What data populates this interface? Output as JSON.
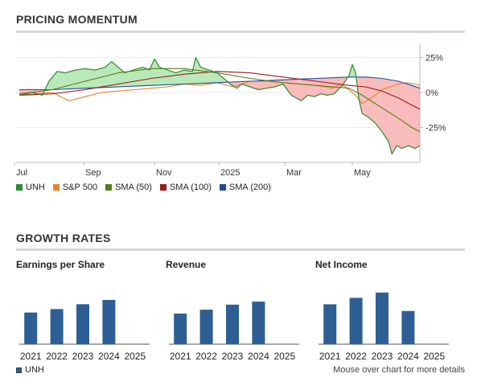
{
  "header": {
    "momentum_title": "PRICING MOMENTUM",
    "growth_title": "GROWTH RATES"
  },
  "colors": {
    "unh": "#2e8b2e",
    "sp500": "#e8832a",
    "sma50": "#5a7d1a",
    "sma100": "#9c1b1b",
    "sma200": "#23479a",
    "bar": "#2d5f94",
    "positive_fill": "#9fe09f",
    "negative_fill": "#f5a3a3"
  },
  "chart_data": [
    {
      "type": "line",
      "x_ticks": [
        "Jul",
        "Sep",
        "Nov",
        "2025",
        "Mar",
        "May"
      ],
      "y_ticks": [
        "25%",
        "0%",
        "-25%"
      ],
      "ylim": [
        -50,
        35
      ],
      "grid": true,
      "legend_position": "bottom",
      "series": [
        {
          "name": "UNH",
          "color": "#2e8b2e",
          "points": [
            [
              0,
              -2
            ],
            [
              8,
              -1
            ],
            [
              16,
              0
            ],
            [
              28,
              -2
            ],
            [
              36,
              8
            ],
            [
              46,
              15
            ],
            [
              56,
              14
            ],
            [
              68,
              16
            ],
            [
              80,
              17
            ],
            [
              92,
              16
            ],
            [
              104,
              18
            ],
            [
              112,
              22
            ],
            [
              120,
              18
            ],
            [
              128,
              14
            ],
            [
              138,
              16
            ],
            [
              150,
              18
            ],
            [
              158,
              16
            ],
            [
              164,
              24
            ],
            [
              170,
              18
            ],
            [
              180,
              16
            ],
            [
              190,
              14
            ],
            [
              200,
              16
            ],
            [
              210,
              15
            ],
            [
              214,
              25
            ],
            [
              220,
              18
            ],
            [
              230,
              16
            ],
            [
              240,
              14
            ],
            [
              248,
              10
            ],
            [
              256,
              6
            ],
            [
              264,
              3
            ],
            [
              270,
              6
            ],
            [
              280,
              4
            ],
            [
              290,
              2
            ],
            [
              300,
              3
            ],
            [
              310,
              4
            ],
            [
              320,
              6
            ],
            [
              330,
              -2
            ],
            [
              336,
              -4
            ],
            [
              342,
              -6
            ],
            [
              350,
              -2
            ],
            [
              358,
              -3
            ],
            [
              366,
              -1
            ],
            [
              374,
              -2
            ],
            [
              382,
              -1
            ],
            [
              392,
              5
            ],
            [
              400,
              12
            ],
            [
              404,
              20
            ],
            [
              408,
              14
            ],
            [
              412,
              -5
            ],
            [
              416,
              -15
            ],
            [
              424,
              -18
            ],
            [
              432,
              -22
            ],
            [
              440,
              -28
            ],
            [
              448,
              -35
            ],
            [
              452,
              -44
            ],
            [
              458,
              -38
            ],
            [
              464,
              -40
            ],
            [
              472,
              -38
            ],
            [
              480,
              -40
            ],
            [
              486,
              -38
            ]
          ]
        },
        {
          "name": "S&P 500",
          "color": "#e8832a",
          "points": [
            [
              0,
              -2
            ],
            [
              20,
              -1
            ],
            [
              40,
              0
            ],
            [
              60,
              -6
            ],
            [
              80,
              -3
            ],
            [
              100,
              0
            ],
            [
              120,
              1
            ],
            [
              140,
              2
            ],
            [
              160,
              3
            ],
            [
              180,
              4
            ],
            [
              200,
              6
            ],
            [
              220,
              5
            ],
            [
              240,
              7
            ],
            [
              260,
              4
            ],
            [
              280,
              8
            ],
            [
              300,
              8
            ],
            [
              320,
              7
            ],
            [
              340,
              6
            ],
            [
              360,
              5
            ],
            [
              380,
              3
            ],
            [
              390,
              6
            ],
            [
              400,
              2
            ],
            [
              408,
              -2
            ],
            [
              416,
              -8
            ],
            [
              424,
              -5
            ],
            [
              432,
              -2
            ],
            [
              440,
              2
            ],
            [
              450,
              4
            ],
            [
              460,
              6
            ],
            [
              470,
              7
            ],
            [
              480,
              6
            ],
            [
              486,
              5
            ]
          ]
        },
        {
          "name": "SMA (50)",
          "color": "#5a7d1a",
          "points": [
            [
              0,
              -1
            ],
            [
              40,
              2
            ],
            [
              80,
              8
            ],
            [
              120,
              14
            ],
            [
              160,
              17
            ],
            [
              200,
              17
            ],
            [
              240,
              14
            ],
            [
              280,
              10
            ],
            [
              320,
              7
            ],
            [
              360,
              5
            ],
            [
              380,
              4
            ],
            [
              400,
              3
            ],
            [
              416,
              -2
            ],
            [
              432,
              -8
            ],
            [
              448,
              -14
            ],
            [
              464,
              -20
            ],
            [
              476,
              -25
            ],
            [
              486,
              -28
            ]
          ]
        },
        {
          "name": "SMA (100)",
          "color": "#9c1b1b",
          "points": [
            [
              0,
              -2
            ],
            [
              40,
              -1
            ],
            [
              80,
              2
            ],
            [
              120,
              6
            ],
            [
              160,
              10
            ],
            [
              200,
              13
            ],
            [
              240,
              15
            ],
            [
              280,
              14
            ],
            [
              320,
              11
            ],
            [
              360,
              8
            ],
            [
              400,
              5
            ],
            [
              420,
              4
            ],
            [
              440,
              1
            ],
            [
              460,
              -4
            ],
            [
              476,
              -9
            ],
            [
              486,
              -12
            ]
          ]
        },
        {
          "name": "SMA (200)",
          "color": "#23479a",
          "points": [
            [
              0,
              2
            ],
            [
              40,
              2
            ],
            [
              80,
              3
            ],
            [
              120,
              4
            ],
            [
              160,
              5
            ],
            [
              200,
              6
            ],
            [
              240,
              7
            ],
            [
              280,
              8
            ],
            [
              320,
              9
            ],
            [
              360,
              10
            ],
            [
              400,
              11
            ],
            [
              420,
              11
            ],
            [
              440,
              10
            ],
            [
              460,
              8
            ],
            [
              476,
              5
            ],
            [
              486,
              3
            ]
          ]
        }
      ]
    },
    {
      "type": "bar",
      "title": "Earnings per Share",
      "categories": [
        "2021",
        "2022",
        "2023",
        "2024",
        "2025"
      ],
      "values": [
        18.3,
        20.3,
        23.1,
        25.6,
        null
      ],
      "ylim": [
        0,
        40
      ]
    },
    {
      "type": "bar",
      "title": "Revenue",
      "categories": [
        "2021",
        "2022",
        "2023",
        "2024",
        "2025"
      ],
      "values": [
        287.6,
        324.2,
        371.6,
        400.3,
        null
      ],
      "ylim": [
        0,
        650
      ]
    },
    {
      "type": "bar",
      "title": "Net Income",
      "categories": [
        "2021",
        "2022",
        "2023",
        "2024",
        "2025"
      ],
      "values": [
        17.3,
        20.1,
        22.4,
        14.4,
        null
      ],
      "ylim": [
        0,
        30
      ]
    }
  ],
  "legend": [
    {
      "label": "UNH",
      "color": "#2e8b2e"
    },
    {
      "label": "S&P 500",
      "color": "#e8832a"
    },
    {
      "label": "SMA (50)",
      "color": "#5a7d1a"
    },
    {
      "label": "SMA (100)",
      "color": "#9c1b1b"
    },
    {
      "label": "SMA (200)",
      "color": "#23479a"
    }
  ],
  "footer": {
    "series_label": "UNH",
    "note": "Mouse over chart for more details"
  }
}
